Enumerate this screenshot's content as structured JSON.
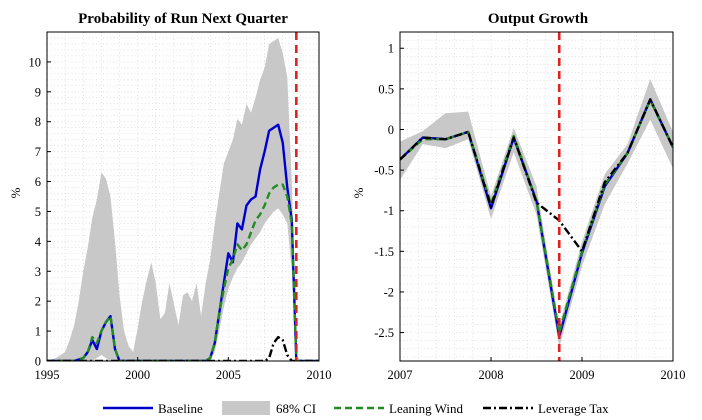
{
  "chart_data": [
    {
      "type": "line",
      "title": "Probability of Run Next Quarter",
      "xlabel": "",
      "ylabel": "%",
      "xlim": [
        1995,
        2010
      ],
      "ylim": [
        0,
        11
      ],
      "xticks": [
        1995,
        2000,
        2005,
        2010
      ],
      "xtick_labels": [
        "1995",
        "2000",
        "2005",
        "2010"
      ],
      "yticks": [
        0,
        1,
        2,
        3,
        4,
        5,
        6,
        7,
        8,
        9,
        10
      ],
      "ytick_labels": [
        "0",
        "1",
        "2",
        "3",
        "4",
        "5",
        "6",
        "7",
        "8",
        "9",
        "10"
      ],
      "grid": "dotted",
      "vline": {
        "x": 2008.75,
        "style": "red dashed"
      },
      "ci_band": {
        "name": "68% CI",
        "x": [
          1995.0,
          1995.5,
          1996.0,
          1996.25,
          1996.5,
          1996.75,
          1997.0,
          1997.25,
          1997.5,
          1997.75,
          1998.0,
          1998.25,
          1998.5,
          1998.75,
          1999.0,
          1999.25,
          1999.5,
          1999.75,
          2000.0,
          2000.25,
          2000.5,
          2000.75,
          2001.0,
          2001.25,
          2001.5,
          2001.75,
          2002.0,
          2002.25,
          2002.5,
          2002.75,
          2003.0,
          2003.25,
          2003.5,
          2003.75,
          2004.0,
          2004.25,
          2004.5,
          2004.75,
          2005.0,
          2005.25,
          2005.5,
          2005.75,
          2006.0,
          2006.25,
          2006.5,
          2006.75,
          2007.0,
          2007.25,
          2007.5,
          2007.75,
          2008.0,
          2008.25,
          2008.5,
          2008.75,
          2009.0,
          2010.0
        ],
        "upper": [
          0,
          0.1,
          0.3,
          0.7,
          1.2,
          2.0,
          3.0,
          3.8,
          4.8,
          5.4,
          6.3,
          6.1,
          5.5,
          4.0,
          2.2,
          1.0,
          0.5,
          0.3,
          1.1,
          2.0,
          2.7,
          3.3,
          2.6,
          1.4,
          1.6,
          2.6,
          1.9,
          1.2,
          2.2,
          2.3,
          2.0,
          2.6,
          1.5,
          2.6,
          3.4,
          4.6,
          5.6,
          6.6,
          7.0,
          7.4,
          8.1,
          7.9,
          8.6,
          8.3,
          8.8,
          9.4,
          9.8,
          10.6,
          10.7,
          10.8,
          10.3,
          9.5,
          6.0,
          0.2,
          0,
          0
        ],
        "lower": [
          0,
          0,
          0,
          0,
          0,
          0,
          0,
          0,
          0,
          0.1,
          0.2,
          0.1,
          0,
          0,
          0,
          0,
          0,
          0,
          0,
          0,
          0,
          0,
          0,
          0,
          0,
          0,
          0,
          0,
          0,
          0,
          0,
          0,
          0,
          0,
          0,
          0.3,
          1.0,
          1.8,
          2.4,
          2.8,
          3.1,
          3.3,
          3.6,
          3.9,
          4.1,
          4.3,
          4.6,
          4.8,
          5.0,
          5.1,
          4.9,
          4.6,
          3.0,
          0.1,
          0,
          0
        ]
      },
      "x": [
        1995.0,
        1996.0,
        1996.5,
        1997.0,
        1997.25,
        1997.5,
        1997.75,
        1998.0,
        1998.25,
        1998.5,
        1998.75,
        1999.0,
        2000.0,
        2001.0,
        2002.0,
        2003.0,
        2003.75,
        2004.0,
        2004.25,
        2004.5,
        2004.75,
        2005.0,
        2005.25,
        2005.5,
        2005.75,
        2006.0,
        2006.25,
        2006.5,
        2006.75,
        2007.0,
        2007.25,
        2007.5,
        2007.75,
        2008.0,
        2008.25,
        2008.5,
        2008.75,
        2009.0,
        2010.0
      ],
      "series": [
        {
          "name": "Baseline",
          "color": "#0000cc",
          "style": "solid",
          "values": [
            0,
            0,
            0,
            0.1,
            0.3,
            0.7,
            0.4,
            1.0,
            1.3,
            1.5,
            0.4,
            0,
            0,
            0,
            0,
            0,
            0,
            0.1,
            0.6,
            1.6,
            2.6,
            3.6,
            3.3,
            4.6,
            4.4,
            5.2,
            5.4,
            5.5,
            6.4,
            7.0,
            7.7,
            7.8,
            7.9,
            7.3,
            5.8,
            4.7,
            0,
            0,
            0
          ]
        },
        {
          "name": "Leaning Wind",
          "color": "#228b22",
          "style": "dashed",
          "values": [
            0,
            0,
            0,
            0.1,
            0.3,
            0.8,
            0.6,
            1.0,
            1.3,
            1.5,
            0.4,
            0,
            0,
            0,
            0,
            0,
            0,
            0.1,
            0.6,
            1.6,
            2.4,
            3.1,
            3.4,
            3.9,
            3.7,
            3.9,
            4.3,
            4.7,
            4.9,
            5.2,
            5.6,
            5.8,
            5.9,
            5.9,
            5.5,
            4.6,
            0,
            0,
            0
          ]
        },
        {
          "name": "Leverage Tax",
          "color": "#000000",
          "style": "dashdot",
          "values": [
            0,
            0,
            0,
            0,
            0,
            0,
            0,
            0,
            0,
            0,
            0,
            0,
            0,
            0,
            0,
            0,
            0,
            0,
            0,
            0,
            0,
            0,
            0,
            0,
            0,
            0,
            0,
            0,
            0,
            0,
            0.1,
            0.6,
            0.8,
            0.7,
            0.2,
            0,
            0,
            0,
            0
          ]
        }
      ]
    },
    {
      "type": "line",
      "title": "Output Growth",
      "xlabel": "",
      "ylabel": "%",
      "xlim": [
        2007,
        2010
      ],
      "ylim": [
        -2.85,
        1.2
      ],
      "xticks": [
        2007,
        2008,
        2009,
        2010
      ],
      "xtick_labels": [
        "2007",
        "2008",
        "2009",
        "2010"
      ],
      "yticks": [
        1,
        0.5,
        0,
        -0.5,
        -1,
        -1.5,
        -2,
        -2.5
      ],
      "ytick_labels": [
        "1",
        "0.5",
        "0",
        "-0.5",
        "-1",
        "-1.5",
        "-2",
        "-2.5"
      ],
      "grid": "dotted",
      "vline": {
        "x": 2008.75,
        "style": "red dashed"
      },
      "x": [
        2007.0,
        2007.25,
        2007.5,
        2007.75,
        2008.0,
        2008.25,
        2008.5,
        2008.75,
        2009.0,
        2009.25,
        2009.5,
        2009.75,
        2010.0
      ],
      "ci_band": {
        "name": "68% CI",
        "upper": [
          -0.15,
          -0.02,
          0.2,
          0.22,
          -0.82,
          0.02,
          -0.7,
          -2.42,
          -1.38,
          -0.55,
          -0.18,
          0.62,
          -0.03
        ],
        "lower": [
          -0.62,
          -0.18,
          -0.23,
          -0.12,
          -1.1,
          -0.28,
          -1.05,
          -2.68,
          -1.68,
          -0.92,
          -0.42,
          0.12,
          -0.48
        ]
      },
      "series": [
        {
          "name": "Baseline",
          "color": "#0000cc",
          "style": "solid",
          "values": [
            -0.37,
            -0.1,
            -0.12,
            -0.03,
            -0.97,
            -0.1,
            -0.88,
            -2.55,
            -1.52,
            -0.7,
            -0.29,
            0.37,
            -0.22
          ]
        },
        {
          "name": "Leaning Wind",
          "color": "#228b22",
          "style": "dashed",
          "values": [
            -0.37,
            -0.12,
            -0.12,
            -0.03,
            -0.92,
            -0.08,
            -0.88,
            -2.5,
            -1.5,
            -0.68,
            -0.29,
            0.36,
            -0.22
          ]
        },
        {
          "name": "Leverage Tax",
          "color": "#000000",
          "style": "dashdot",
          "values": [
            -0.37,
            -0.1,
            -0.12,
            -0.03,
            -0.95,
            -0.1,
            -0.9,
            -1.12,
            -1.5,
            -0.65,
            -0.29,
            0.37,
            -0.22
          ]
        }
      ]
    }
  ],
  "legend": {
    "placement": "bottom",
    "items": [
      {
        "label": "Baseline",
        "kind": "line",
        "color": "#0000cc",
        "style": "solid"
      },
      {
        "label": "68% CI",
        "kind": "patch",
        "color": "#c8c8c8"
      },
      {
        "label": "Leaning Wind",
        "kind": "line",
        "color": "#228b22",
        "style": "dashed"
      },
      {
        "label": "Leverage Tax",
        "kind": "line",
        "color": "#000000",
        "style": "dashdot"
      }
    ]
  },
  "colors": {
    "ci_fill": "#c8c8c8",
    "vline": "#dd2222",
    "grid": "#c4c4c4",
    "axis": "#000000"
  }
}
